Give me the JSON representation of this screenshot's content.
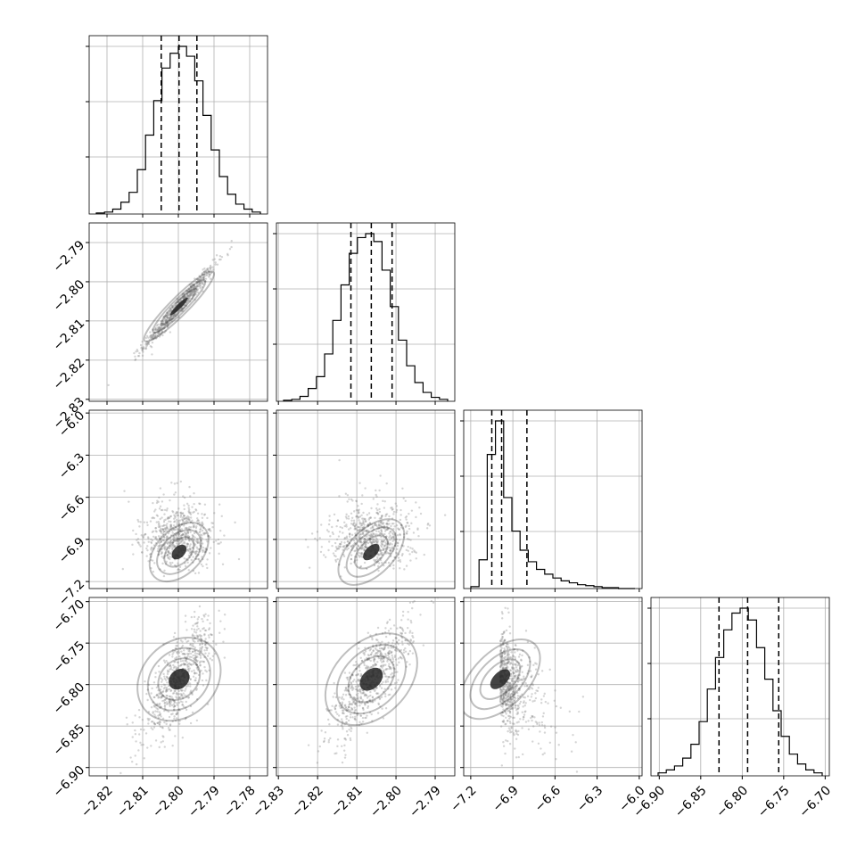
{
  "chart_data": {
    "type": "corner",
    "grid": true,
    "parameters": [
      {
        "index": 0,
        "range": [
          -2.825,
          -2.775
        ],
        "ticks": [
          -2.82,
          -2.81,
          -2.8,
          -2.79,
          -2.78
        ],
        "tick_labels": [
          "−2.82",
          "−2.81",
          "−2.80",
          "−2.79",
          "−2.78"
        ],
        "quantiles": [
          -2.8048,
          -2.7998,
          -2.7948
        ],
        "mean": -2.7998,
        "sd": 0.0049
      },
      {
        "index": 1,
        "range": [
          -2.8305,
          -2.785
        ],
        "ticks": [
          -2.83,
          -2.82,
          -2.81,
          -2.8,
          -2.79
        ],
        "tick_labels": [
          "−2.83",
          "−2.82",
          "−2.81",
          "−2.80",
          "−2.79"
        ],
        "quantiles": [
          -2.8115,
          -2.8063,
          -2.801
        ],
        "mean": -2.8063,
        "sd": 0.0052
      },
      {
        "index": 2,
        "range": [
          -7.25,
          -5.98
        ],
        "ticks": [
          -7.2,
          -6.9,
          -6.6,
          -6.3,
          -6.0
        ],
        "tick_labels": [
          "−7.2",
          "−6.9",
          "−6.6",
          "−6.3",
          "−6.0"
        ],
        "quantiles": [
          -7.05,
          -6.98,
          -6.8
        ],
        "mode": -6.99
      },
      {
        "index": 3,
        "range": [
          -6.91,
          -6.695
        ],
        "ticks": [
          -6.9,
          -6.85,
          -6.8,
          -6.75,
          -6.7
        ],
        "tick_labels": [
          "−6.90",
          "−6.85",
          "−6.80",
          "−6.75",
          "−6.70"
        ],
        "quantiles": [
          -6.828,
          -6.7935,
          -6.756
        ],
        "mean": -6.7935,
        "sd": 0.0355
      }
    ],
    "histograms": [
      [
        1,
        2,
        5,
        12,
        22,
        45,
        80,
        115,
        148,
        163,
        170,
        160,
        135,
        100,
        65,
        38,
        20,
        10,
        5,
        2
      ],
      [
        1,
        2,
        5,
        13,
        25,
        48,
        82,
        118,
        150,
        166,
        170,
        162,
        133,
        96,
        62,
        36,
        19,
        9,
        4,
        2
      ],
      [
        2,
        30,
        140,
        175,
        95,
        60,
        40,
        28,
        20,
        15,
        11,
        8,
        6,
        4,
        3,
        2,
        1,
        1,
        0,
        0
      ],
      [
        3,
        6,
        10,
        18,
        32,
        55,
        88,
        120,
        148,
        165,
        170,
        158,
        130,
        98,
        66,
        40,
        22,
        12,
        6,
        3
      ]
    ],
    "correlations": {
      "1-0": 0.98,
      "2-0": 0.0,
      "2-1": 0.0,
      "3-0": 0.78,
      "3-1": 0.78,
      "3-2": -0.55
    }
  }
}
